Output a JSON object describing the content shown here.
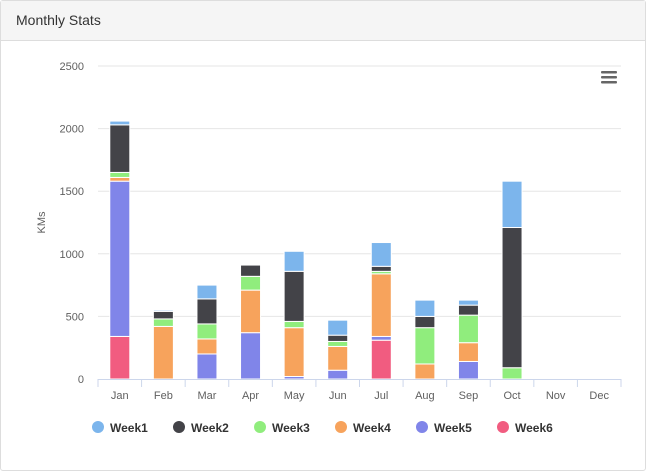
{
  "panel": {
    "title": "Monthly Stats"
  },
  "menu": {
    "icon": "hamburger-menu-icon"
  },
  "chart_data": {
    "type": "bar",
    "stacked": true,
    "categories": [
      "Jan",
      "Feb",
      "Mar",
      "Apr",
      "May",
      "Jun",
      "Jul",
      "Aug",
      "Sep",
      "Oct",
      "Nov",
      "Dec"
    ],
    "ylabel": "KMs",
    "xlabel": "",
    "ylim": [
      0,
      2500
    ],
    "yticks": [
      "0",
      "500",
      "1000",
      "1500",
      "2000",
      "2500"
    ],
    "grid": true,
    "legend_position": "bottom",
    "series": [
      {
        "name": "Week1",
        "color": "#7cb5ec",
        "values": [
          30,
          10,
          110,
          0,
          160,
          120,
          190,
          130,
          40,
          370,
          0,
          0
        ]
      },
      {
        "name": "Week2",
        "color": "#434348",
        "values": [
          380,
          60,
          200,
          90,
          400,
          50,
          40,
          90,
          80,
          1120,
          0,
          0
        ]
      },
      {
        "name": "Week3",
        "color": "#90ed7d",
        "values": [
          40,
          60,
          120,
          110,
          50,
          40,
          20,
          290,
          220,
          90,
          0,
          0
        ]
      },
      {
        "name": "Week4",
        "color": "#f7a35c",
        "values": [
          30,
          420,
          120,
          340,
          390,
          190,
          500,
          120,
          150,
          0,
          0,
          0
        ]
      },
      {
        "name": "Week5",
        "color": "#8085e9",
        "values": [
          1240,
          0,
          200,
          370,
          20,
          70,
          30,
          0,
          140,
          0,
          0,
          0
        ]
      },
      {
        "name": "Week6",
        "color": "#f15c80",
        "values": [
          340,
          0,
          0,
          0,
          0,
          0,
          310,
          0,
          0,
          0,
          0,
          0
        ]
      }
    ]
  }
}
